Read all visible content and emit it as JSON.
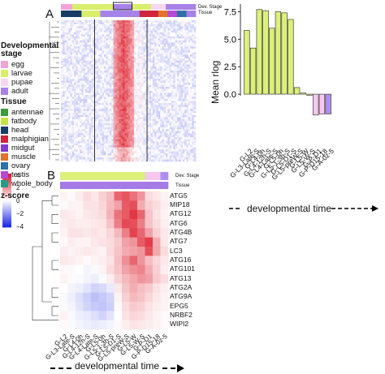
{
  "panel_a": {
    "letter": "A",
    "annot_labels": [
      "Dev. Stage",
      "Tissue"
    ]
  },
  "panel_b": {
    "letter": "B",
    "annot_labels": [
      "Dev. Stage",
      "Tissue"
    ],
    "xlabel": "developmental time"
  },
  "legend": {
    "dev_title": "Developmental stage",
    "dev_items": [
      {
        "label": "egg",
        "color": "#f2a3d6"
      },
      {
        "label": "larvae",
        "color": "#d9ee6a"
      },
      {
        "label": "pupae",
        "color": "#f7d7f0"
      },
      {
        "label": "adult",
        "color": "#a682e8"
      }
    ],
    "tissue_title": "Tissue",
    "tissue_items": [
      {
        "label": "antennae",
        "color": "#3d9b3d"
      },
      {
        "label": "fatbody",
        "color": "#c8e04a"
      },
      {
        "label": "head",
        "color": "#173c66"
      },
      {
        "label": "malphigian",
        "color": "#d1233a"
      },
      {
        "label": "midgut",
        "color": "#7f3bd3"
      },
      {
        "label": "muscle",
        "color": "#e1732b"
      },
      {
        "label": "ovary",
        "color": "#2e6fa6"
      },
      {
        "label": "testis",
        "color": "#b24ad6"
      },
      {
        "label": "whole_body",
        "color": "#2a9a86"
      }
    ],
    "zscore_title": "z-score",
    "zscore_ticks": [
      "4",
      "2",
      "0",
      "−2",
      "−4"
    ]
  },
  "chart_data": [
    {
      "type": "heatmap",
      "panel": "A",
      "rows": 70,
      "columns": 72,
      "notes_visible": [
        "Dev. Stage",
        "Tissue"
      ]
    },
    {
      "type": "heatmap",
      "panel": "B",
      "xlabel": "developmental time",
      "columns": [
        "G-L2",
        "G-L3-Late-S",
        "G-L4-0h",
        "G-L4-12h-S",
        "G-L4-Late-S",
        "G-L5-0h",
        "G-L5-1-3h-S",
        "G-L5-D1-S",
        "G-L5-preW-S",
        "G-L5-W",
        "G-L5-W-S",
        "G-P-D1",
        "G-P-D15-18",
        "G-A-0z-5"
      ],
      "rows": [
        "ATG5",
        "MIP18",
        "ATG12",
        "ATG6",
        "ATG4B",
        "ATG7",
        "LC3",
        "ATG16",
        "ATG101",
        "ATG13",
        "ATG2A",
        "ATG9A",
        "EPG5",
        "NRBF2",
        "WIPI2"
      ],
      "values": [
        [
          0.2,
          0.1,
          0.3,
          0.6,
          0.4,
          0.8,
          1.1,
          2.6,
          2.9,
          2.4,
          1.8,
          0.6,
          0.4,
          0.2
        ],
        [
          0.1,
          0.2,
          0.2,
          0.5,
          0.5,
          0.7,
          1.2,
          1.6,
          2.8,
          3.0,
          1.4,
          0.8,
          0.6,
          0.3
        ],
        [
          0.4,
          0.3,
          0.2,
          0.4,
          0.5,
          0.6,
          1.3,
          2.4,
          2.8,
          3.4,
          2.6,
          1.0,
          0.5,
          0.2
        ],
        [
          0.3,
          0.4,
          0.3,
          0.3,
          0.4,
          0.5,
          1.0,
          2.2,
          3.1,
          3.0,
          2.2,
          1.0,
          0.6,
          0.3
        ],
        [
          0.2,
          0.5,
          0.5,
          0.4,
          0.5,
          0.4,
          0.7,
          1.2,
          2.2,
          3.2,
          2.6,
          1.6,
          0.8,
          0.4
        ],
        [
          0.1,
          0.3,
          0.2,
          0.2,
          0.4,
          0.5,
          0.6,
          0.9,
          1.6,
          1.8,
          2.8,
          3.3,
          1.4,
          0.4
        ],
        [
          0.3,
          0.2,
          0.3,
          0.4,
          0.3,
          0.2,
          0.6,
          1.0,
          1.4,
          1.6,
          1.8,
          3.0,
          1.5,
          0.6
        ],
        [
          0.4,
          0.3,
          0.2,
          0.1,
          0.2,
          0.3,
          0.5,
          1.1,
          1.9,
          2.6,
          1.8,
          1.1,
          0.7,
          0.4
        ],
        [
          0.1,
          0.1,
          0.0,
          -0.2,
          -0.1,
          0.2,
          0.6,
          1.0,
          1.6,
          1.9,
          2.1,
          1.4,
          0.8,
          0.3
        ],
        [
          0.2,
          0.1,
          -0.1,
          -0.2,
          -0.3,
          -0.1,
          0.3,
          0.8,
          1.2,
          1.5,
          1.8,
          1.6,
          0.9,
          0.6
        ],
        [
          0.0,
          -0.2,
          -0.3,
          -0.5,
          -0.8,
          -0.7,
          -0.4,
          0.4,
          1.0,
          1.4,
          1.1,
          0.9,
          0.5,
          0.3
        ],
        [
          -0.1,
          -0.3,
          -0.6,
          -0.9,
          -1.2,
          -1.0,
          -0.8,
          0.2,
          0.8,
          1.2,
          1.0,
          0.7,
          0.4,
          0.2
        ],
        [
          0.1,
          -0.2,
          -0.5,
          -0.8,
          -1.0,
          -1.1,
          -0.9,
          0.1,
          0.6,
          0.9,
          0.8,
          0.5,
          0.3,
          0.2
        ],
        [
          0.2,
          -0.1,
          -0.3,
          -0.4,
          -0.6,
          -0.8,
          -0.5,
          0.0,
          0.5,
          0.7,
          0.6,
          0.4,
          0.2,
          0.1
        ],
        [
          0.1,
          -0.1,
          -0.2,
          -0.3,
          -0.4,
          -0.3,
          -0.2,
          0.1,
          0.3,
          0.5,
          0.4,
          0.3,
          0.2,
          0.1
        ]
      ],
      "dev_stage": [
        "larvae",
        "larvae",
        "larvae",
        "larvae",
        "larvae",
        "larvae",
        "larvae",
        "larvae",
        "larvae",
        "larvae",
        "larvae",
        "pupae",
        "pupae",
        "adult"
      ],
      "tissue": [
        "midgut",
        "midgut",
        "midgut",
        "midgut",
        "midgut",
        "midgut",
        "midgut",
        "midgut",
        "midgut",
        "midgut",
        "midgut",
        "midgut",
        "midgut",
        "midgut"
      ]
    },
    {
      "type": "bar",
      "ylabel": "Mean rlog",
      "xlabel": "developmental time",
      "ylim": [
        -4.5,
        8.2
      ],
      "yticks": [
        0.0,
        2.5,
        5.0,
        7.5
      ],
      "categories": [
        "G-L2",
        "G-L3-Late-S",
        "G-L4-0h",
        "G-L4-12h-S",
        "G-L4-Late-S",
        "G-L5-0h",
        "G-L5-1-3h-S",
        "G-L5-D1-S",
        "G-L5-preW-S",
        "G-L5-W",
        "G-L5-W-S",
        "G-P-D1",
        "G-P-D15-18",
        "G-A-0z-5"
      ],
      "values": [
        5.8,
        4.2,
        7.7,
        7.6,
        6.0,
        7.5,
        7.4,
        6.8,
        0.6,
        0.1,
        -0.1,
        -1.9,
        -1.8,
        -1.8
      ],
      "colors": [
        "#dcf07a",
        "#dcf07a",
        "#dcf07a",
        "#dcf07a",
        "#dcf07a",
        "#dcf07a",
        "#dcf07a",
        "#dcf07a",
        "#dcf07a",
        "#dcf07a",
        "#dcf07a",
        "#f6c8ef",
        "#f6c8ef",
        "#ad8ff0"
      ]
    }
  ]
}
